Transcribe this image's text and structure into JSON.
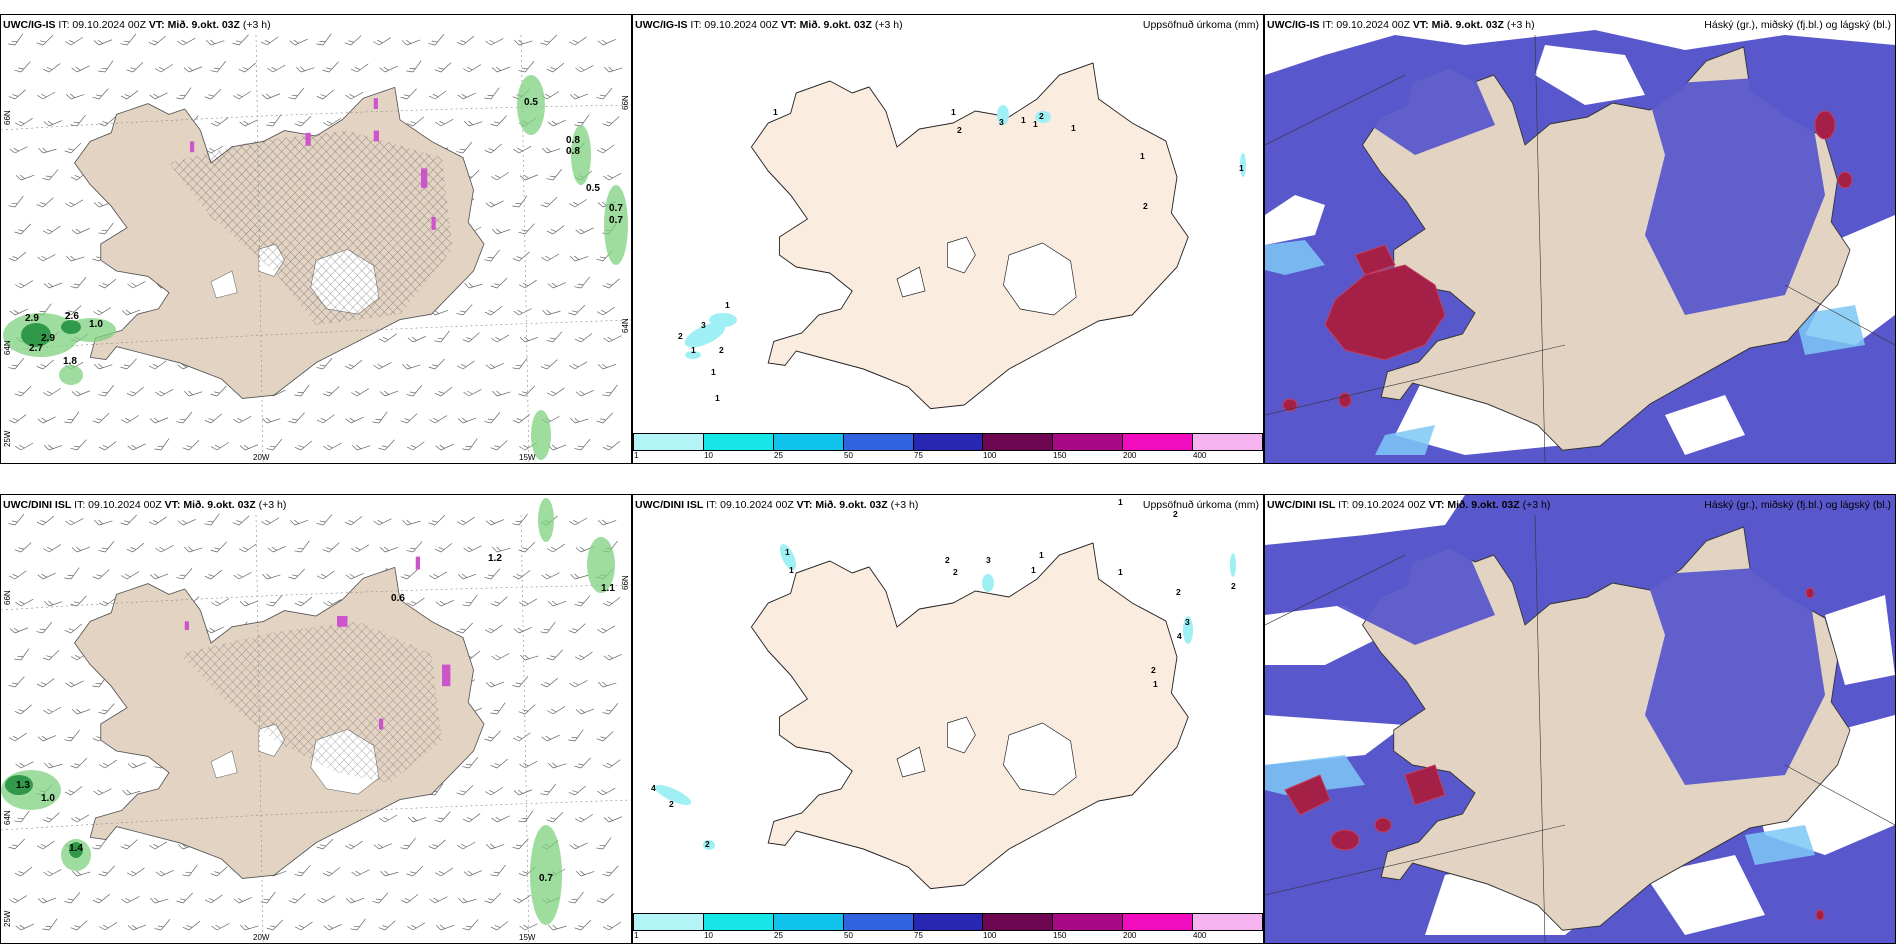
{
  "panels": {
    "wind_ig": {
      "header_model": "UWC/IG-IS",
      "header_it": "IT: 09.10.2024 00Z",
      "header_vt": "VT: Mið. 9.okt. 03Z",
      "header_lead": "(+3 h)",
      "lat_66": "66N",
      "lat_64": "64N",
      "lon_25": "25W",
      "lon_20": "20W",
      "lon_15": "15W",
      "values": [
        "0.5",
        "0.8",
        "0.8",
        "0.5",
        "0.7",
        "0.7",
        "2.9",
        "2.6",
        "1.0",
        "2.9",
        "2.7",
        "1.8"
      ]
    },
    "precip_ig": {
      "header_model": "UWC/IG-IS",
      "header_it": "IT: 09.10.2024 00Z",
      "header_vt": "VT: Mið. 9.okt. 03Z",
      "header_lead": "(+3 h)",
      "title_right": "Uppsöfnuð úrkoma (mm)",
      "values": [
        "1",
        "2",
        "3",
        "1",
        "2",
        "1",
        "1",
        "1",
        "1",
        "1",
        "1",
        "2",
        "3",
        "1",
        "2",
        "2",
        "1",
        "1"
      ]
    },
    "cloud_ig": {
      "header_model": "UWC/IG-IS",
      "header_it": "IT: 09.10.2024 00Z",
      "header_vt": "VT: Mið. 9.okt. 03Z",
      "header_lead": "(+3 h)",
      "title_right": "Háský (gr.), miðský (fj.bl.) og lágský (bl.)"
    },
    "wind_dini": {
      "header_model": "UWC/DINI ISL",
      "header_it": "IT: 09.10.2024 00Z",
      "header_vt": "VT: Mið. 9.okt. 03Z",
      "header_lead": "(+3 h)",
      "lat_66": "66N",
      "lat_64": "64N",
      "lon_25": "25W",
      "lon_20": "20W",
      "lon_15": "15W",
      "values": [
        "1.2",
        "0.6",
        "1.1",
        "1.3",
        "1.0",
        "1.4",
        "0.7"
      ]
    },
    "precip_dini": {
      "header_model": "UWC/DINI ISL",
      "header_it": "IT: 09.10.2024 00Z",
      "header_vt": "VT: Mið. 9.okt. 03Z",
      "header_lead": "(+3 h)",
      "title_right": "Uppsöfnuð úrkoma (mm)",
      "values": [
        "1",
        "2",
        "1",
        "2",
        "2",
        "3",
        "1",
        "1",
        "1",
        "2",
        "1",
        "3",
        "4",
        "2",
        "1",
        "2",
        "4",
        "2",
        "2"
      ]
    },
    "cloud_dini": {
      "header_model": "UWC/DINI ISL",
      "header_it": "IT: 09.10.2024 00Z",
      "header_vt": "VT: Mið. 9.okt. 03Z",
      "header_lead": "(+3 h)",
      "title_right": "Háský (gr.), miðský (fj.bl.) og lágský (bl.)"
    }
  },
  "colorbar": {
    "labels": [
      "1",
      "10",
      "25",
      "50",
      "75",
      "100",
      "150",
      "200",
      "400"
    ],
    "colors": [
      "#b3f5f7",
      "#16e6e8",
      "#0fc3ea",
      "#2f63e0",
      "#2727b4",
      "#6e0752",
      "#a80a86",
      "#f00dc0",
      "#f5b3f0"
    ]
  },
  "colors": {
    "land": "#e3d3c3",
    "land_light": "#fbece0",
    "cloud_low": "#5a5acc",
    "cloud_high": "#a52047",
    "light_blue": "#7ec8f5"
  }
}
